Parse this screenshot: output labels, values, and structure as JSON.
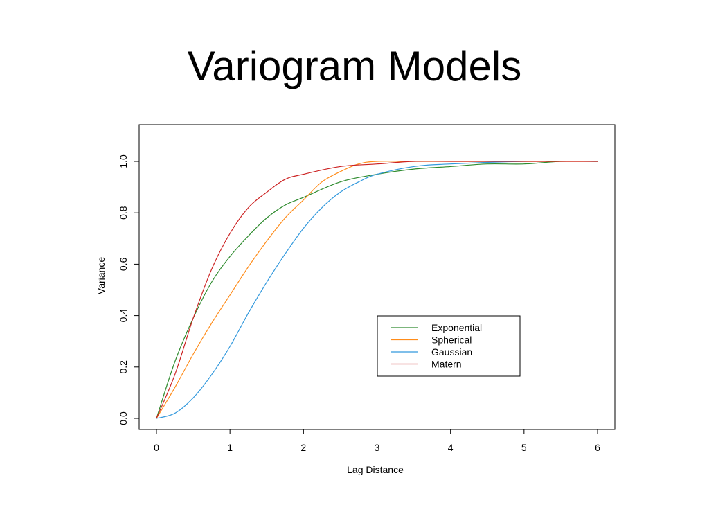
{
  "slide": {
    "title": "Variogram Models"
  },
  "chart_data": {
    "type": "line",
    "title": "",
    "xlabel": "Lag Distance",
    "ylabel": "Variance",
    "xlim": [
      0,
      6
    ],
    "ylim": [
      0,
      1
    ],
    "x_ticks": [
      "0",
      "1",
      "2",
      "3",
      "4",
      "5",
      "6"
    ],
    "y_ticks": [
      "0.0",
      "0.2",
      "0.4",
      "0.6",
      "0.8",
      "1.0"
    ],
    "grid": false,
    "legend_position": "bottom-right",
    "series": [
      {
        "name": "Exponential",
        "color": "#2e8b2e",
        "x": [
          0,
          0.25,
          0.5,
          0.75,
          1,
          1.25,
          1.5,
          1.75,
          2,
          2.5,
          3,
          3.5,
          4,
          4.5,
          5,
          5.5,
          6
        ],
        "y": [
          0,
          0.22,
          0.39,
          0.53,
          0.63,
          0.71,
          0.78,
          0.83,
          0.86,
          0.92,
          0.95,
          0.97,
          0.98,
          0.99,
          0.99,
          1.0,
          1.0
        ]
      },
      {
        "name": "Spherical",
        "color": "#ff8c1a",
        "x": [
          0,
          0.25,
          0.5,
          0.75,
          1,
          1.25,
          1.5,
          1.75,
          2,
          2.25,
          2.5,
          2.75,
          3,
          3.5,
          4,
          5,
          6
        ],
        "y": [
          0,
          0.12,
          0.25,
          0.37,
          0.48,
          0.59,
          0.69,
          0.78,
          0.85,
          0.92,
          0.96,
          0.99,
          1.0,
          1.0,
          1.0,
          1.0,
          1.0
        ]
      },
      {
        "name": "Gaussian",
        "color": "#3399dd",
        "x": [
          0,
          0.25,
          0.5,
          0.75,
          1,
          1.25,
          1.5,
          1.75,
          2,
          2.25,
          2.5,
          2.75,
          3,
          3.5,
          4,
          5,
          6
        ],
        "y": [
          0,
          0.02,
          0.08,
          0.17,
          0.28,
          0.41,
          0.53,
          0.64,
          0.74,
          0.82,
          0.88,
          0.92,
          0.95,
          0.98,
          0.99,
          1.0,
          1.0
        ]
      },
      {
        "name": "Matern",
        "color": "#cc2222",
        "x": [
          0,
          0.25,
          0.5,
          0.75,
          1,
          1.25,
          1.5,
          1.75,
          2,
          2.5,
          3,
          3.5,
          4,
          5,
          6
        ],
        "y": [
          0,
          0.17,
          0.39,
          0.58,
          0.72,
          0.82,
          0.88,
          0.93,
          0.95,
          0.98,
          0.99,
          1.0,
          1.0,
          1.0,
          1.0
        ]
      }
    ]
  }
}
